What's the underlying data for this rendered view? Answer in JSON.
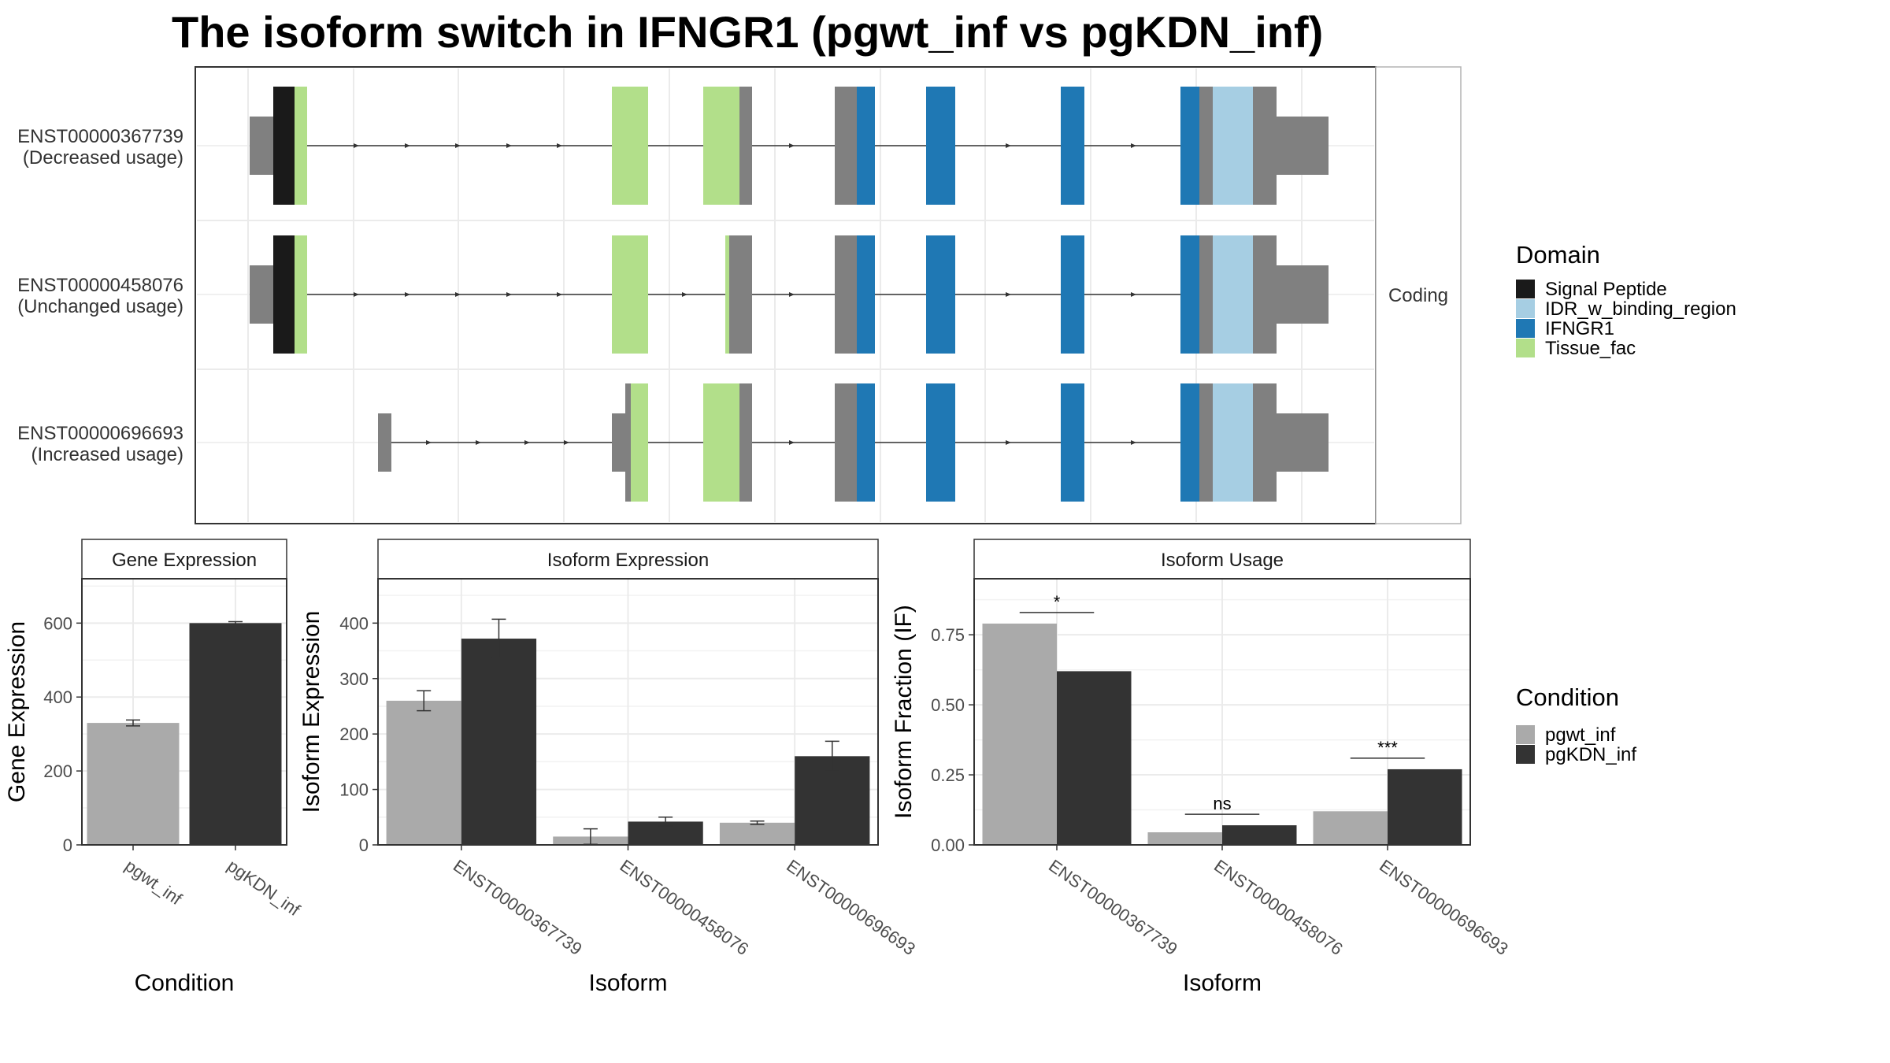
{
  "title": "The isoform switch in IFNGR1 (pgwt_inf vs pgKDN_inf)",
  "colors": {
    "signal_peptide": "#1a1a1a",
    "idr": "#a6cee3",
    "ifngr1": "#1f78b4",
    "tissue_fac": "#b2df8a",
    "noncoding_exon": "#808080",
    "pgwt_inf": "#aaaaaa",
    "pgKDN_inf": "#333333"
  },
  "chart_data": [
    {
      "type": "gene-structure",
      "facet_label": "Coding",
      "transcripts": [
        {
          "id": "ENST00000367739",
          "label": "(Decreased usage)"
        },
        {
          "id": "ENST00000458076",
          "label": "(Unchanged usage)"
        },
        {
          "id": "ENST00000696693",
          "label": "(Increased usage)"
        }
      ],
      "legend": {
        "title": "Domain",
        "entries": [
          {
            "name": "Signal Peptide",
            "color_key": "signal_peptide"
          },
          {
            "name": "IDR_w_binding_region",
            "color_key": "idr"
          },
          {
            "name": "IFNGR1",
            "color_key": "ifngr1"
          },
          {
            "name": "Tissue_fac",
            "color_key": "tissue_fac"
          }
        ]
      }
    },
    {
      "type": "bar",
      "panel_title": "Gene Expression",
      "xlabel": "Condition",
      "ylabel": "Gene Expression",
      "ylim": [
        0,
        720
      ],
      "yticks": [
        0,
        200,
        400,
        600
      ],
      "categories": [
        "pgwt_inf",
        "pgKDN_inf"
      ],
      "values": [
        330,
        600
      ],
      "errors": [
        8,
        4
      ]
    },
    {
      "type": "bar",
      "panel_title": "Isoform Expression",
      "xlabel": "Isoform",
      "ylabel": "Isoform Expression",
      "ylim": [
        0,
        480
      ],
      "yticks": [
        0,
        100,
        200,
        300,
        400
      ],
      "categories": [
        "ENST00000367739",
        "ENST00000458076",
        "ENST00000696693"
      ],
      "series": [
        {
          "condition": "pgwt_inf",
          "values": [
            260,
            15,
            40
          ],
          "errors": [
            18,
            14,
            3
          ]
        },
        {
          "condition": "pgKDN_inf",
          "values": [
            372,
            42,
            160
          ],
          "errors": [
            35,
            8,
            27
          ]
        }
      ]
    },
    {
      "type": "bar",
      "panel_title": "Isoform Usage",
      "xlabel": "Isoform",
      "ylabel": "Isoform Fraction (IF)",
      "ylim": [
        0,
        0.95
      ],
      "yticks": [
        "0.00",
        "0.25",
        "0.50",
        "0.75"
      ],
      "categories": [
        "ENST00000367739",
        "ENST00000458076",
        "ENST00000696693"
      ],
      "series": [
        {
          "condition": "pgwt_inf",
          "values": [
            0.79,
            0.045,
            0.12
          ]
        },
        {
          "condition": "pgKDN_inf",
          "values": [
            0.62,
            0.07,
            0.27
          ]
        }
      ],
      "significance": [
        "*",
        "ns",
        "***"
      ]
    }
  ],
  "condition_legend": {
    "title": "Condition",
    "entries": [
      {
        "name": "pgwt_inf",
        "color_key": "pgwt_inf"
      },
      {
        "name": "pgKDN_inf",
        "color_key": "pgKDN_inf"
      }
    ]
  }
}
